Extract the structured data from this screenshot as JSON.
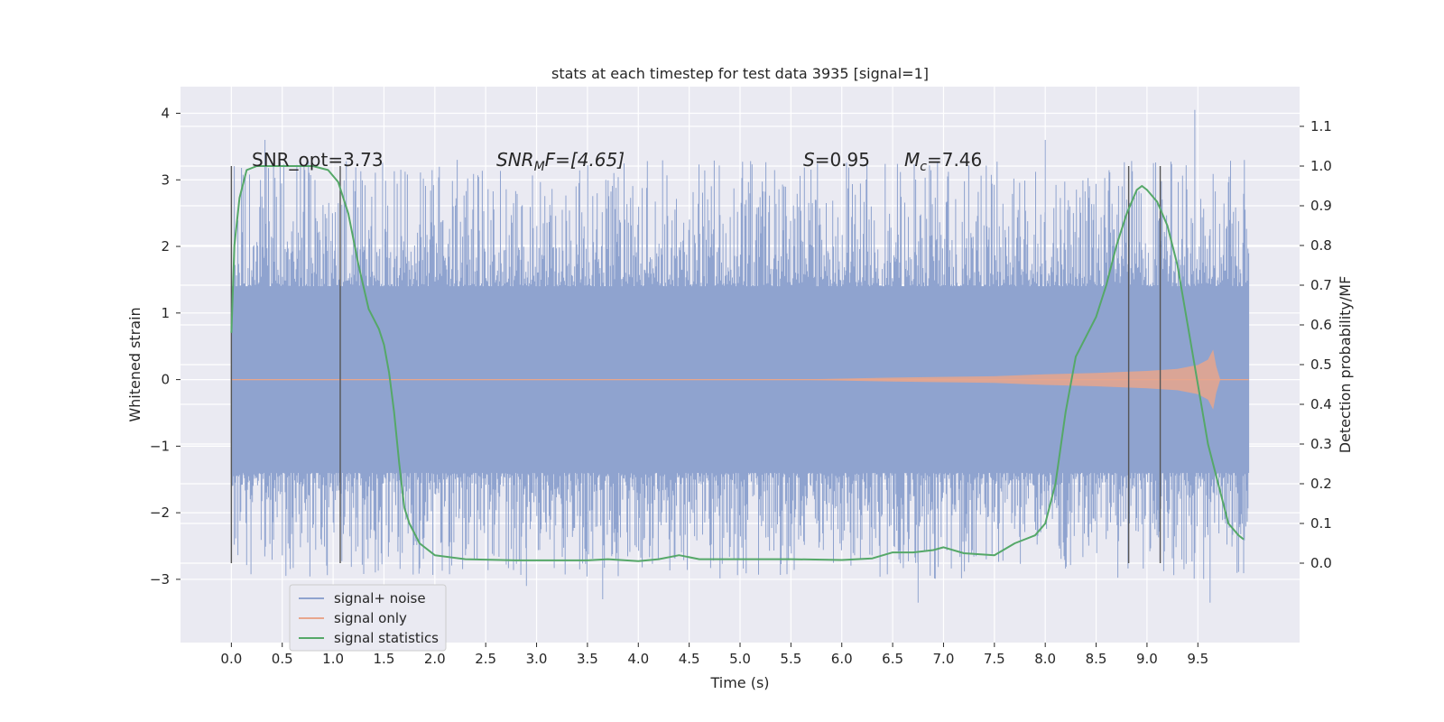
{
  "chart_data": {
    "type": "line",
    "title": "stats at each timestep for test data 3935 [signal=1]",
    "xlabel": "Time (s)",
    "ylabel": "Whitened strain",
    "ylabel_right": "Detection probability/MF",
    "xlim": [
      -0.5,
      10.5
    ],
    "ylim": [
      -3.95,
      4.4
    ],
    "ylim_right": [
      -0.2,
      1.2
    ],
    "x_ticks": [
      "0.0",
      "0.5",
      "1.0",
      "1.5",
      "2.0",
      "2.5",
      "3.0",
      "3.5",
      "4.0",
      "4.5",
      "5.0",
      "5.5",
      "6.0",
      "6.5",
      "7.0",
      "7.5",
      "8.0",
      "8.5",
      "9.0",
      "9.5"
    ],
    "y_ticks": [
      "4",
      "3",
      "2",
      "1",
      "0",
      "−1",
      "−2",
      "−3"
    ],
    "y_right_ticks": [
      "1.1",
      "1.0",
      "0.9",
      "0.8",
      "0.7",
      "0.6",
      "0.5",
      "0.4",
      "0.3",
      "0.2",
      "0.1",
      "0.0"
    ],
    "grid": true,
    "legend_position": "lower-left",
    "legend": [
      {
        "label": "signal+ noise",
        "color": "#8fa3cf"
      },
      {
        "label": "signal only",
        "color": "#e8a68c"
      },
      {
        "label": "signal statistics",
        "color": "#55a868"
      }
    ],
    "annotations": {
      "snr_opt": "SNR_opt=3.73",
      "snr_mf_sym": "SNR",
      "snr_mf_sub": "M",
      "snr_mf_rest": "F=[4.65]",
      "s_sym": "S",
      "s_val": "=0.95",
      "mc_sym": "M",
      "mc_sub": "c",
      "mc_val": "=7.46"
    },
    "vertical_markers": [
      0.0,
      1.07,
      8.82,
      9.13
    ],
    "noise_band": {
      "x_start": 0.0,
      "x_end": 10.0,
      "core_half_width": 1.4,
      "peak_max": 4.05,
      "peak_min": -3.35
    },
    "signal_only": {
      "x": [
        0.0,
        5.5,
        6.5,
        7.5,
        8.0,
        8.5,
        9.0,
        9.3,
        9.5,
        9.6,
        9.65,
        9.68,
        9.72,
        10.0
      ],
      "amplitude": [
        0.0,
        0.0,
        0.03,
        0.05,
        0.08,
        0.1,
        0.13,
        0.16,
        0.22,
        0.3,
        0.45,
        0.2,
        0.0,
        0.0
      ]
    },
    "series": [
      {
        "name": "signal statistics",
        "color": "#55a868",
        "x": [
          0.0,
          0.03,
          0.08,
          0.15,
          0.25,
          0.4,
          0.6,
          0.8,
          0.95,
          1.05,
          1.15,
          1.25,
          1.35,
          1.45,
          1.5,
          1.55,
          1.6,
          1.65,
          1.7,
          1.75,
          1.85,
          2.0,
          2.3,
          2.8,
          3.5,
          3.7,
          4.0,
          4.2,
          4.4,
          4.6,
          5.0,
          5.5,
          6.0,
          6.3,
          6.5,
          6.7,
          6.9,
          7.0,
          7.2,
          7.5,
          7.7,
          7.9,
          8.0,
          8.1,
          8.2,
          8.3,
          8.5,
          8.6,
          8.7,
          8.8,
          8.9,
          8.95,
          9.0,
          9.1,
          9.2,
          9.3,
          9.4,
          9.5,
          9.6,
          9.7,
          9.8,
          9.9,
          9.95
        ],
        "values": [
          0.58,
          0.8,
          0.92,
          0.99,
          1.0,
          1.0,
          1.0,
          1.0,
          0.99,
          0.96,
          0.88,
          0.75,
          0.64,
          0.59,
          0.55,
          0.48,
          0.38,
          0.25,
          0.14,
          0.1,
          0.05,
          0.02,
          0.01,
          0.007,
          0.007,
          0.01,
          0.005,
          0.01,
          0.02,
          0.01,
          0.01,
          0.01,
          0.008,
          0.012,
          0.027,
          0.027,
          0.033,
          0.04,
          0.025,
          0.02,
          0.05,
          0.07,
          0.1,
          0.2,
          0.38,
          0.52,
          0.62,
          0.7,
          0.8,
          0.88,
          0.94,
          0.95,
          0.94,
          0.91,
          0.85,
          0.75,
          0.6,
          0.45,
          0.3,
          0.2,
          0.1,
          0.07,
          0.06
        ]
      }
    ]
  }
}
